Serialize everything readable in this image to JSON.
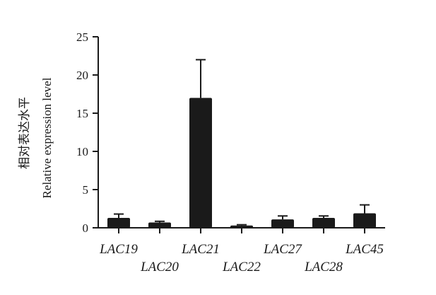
{
  "chart_data": {
    "type": "bar",
    "title": "",
    "xlabel": "",
    "ylabel_line1": "相对表达水平",
    "ylabel_line2": "Relative expression level",
    "categories": [
      "LAC19",
      "LAC20",
      "LAC21",
      "LAC22",
      "LAC27",
      "LAC28",
      "LAC45"
    ],
    "values": [
      1.3,
      0.7,
      17.0,
      0.3,
      1.1,
      1.3,
      1.9
    ],
    "error": [
      0.5,
      0.15,
      5.0,
      0.1,
      0.45,
      0.25,
      1.1
    ],
    "ylim": [
      0,
      25
    ],
    "yticks": [
      "0",
      "5",
      "10",
      "15",
      "20",
      "25"
    ],
    "grid": false,
    "bar_color": "#1a1a1a"
  }
}
